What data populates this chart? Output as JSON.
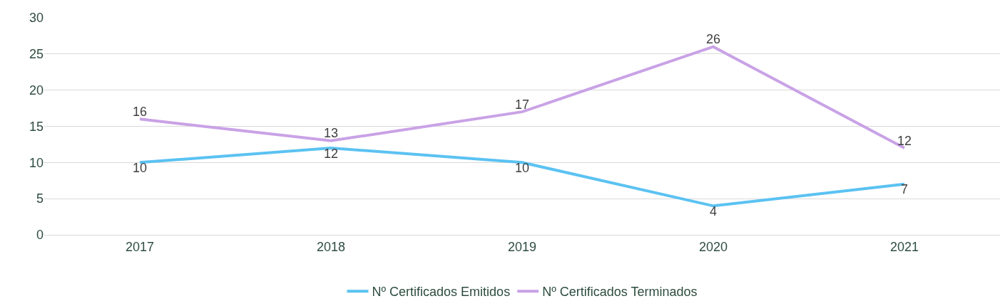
{
  "chart_data": {
    "type": "line",
    "categories": [
      "2017",
      "2018",
      "2019",
      "2020",
      "2021"
    ],
    "series": [
      {
        "name": "Nº Certificados Emitidos",
        "color": "#5bc2f2",
        "values": [
          10,
          12,
          10,
          4,
          7
        ]
      },
      {
        "name": "Nº Certificados Terminados",
        "color": "#c9a2e6",
        "values": [
          16,
          13,
          17,
          26,
          12
        ]
      }
    ],
    "ylim": [
      0,
      30
    ],
    "yticks": [
      0,
      5,
      10,
      15,
      20,
      25,
      30
    ],
    "grid": "y",
    "legend": "bottom",
    "data_labels": true,
    "marker": "none",
    "line_style": "solid"
  }
}
